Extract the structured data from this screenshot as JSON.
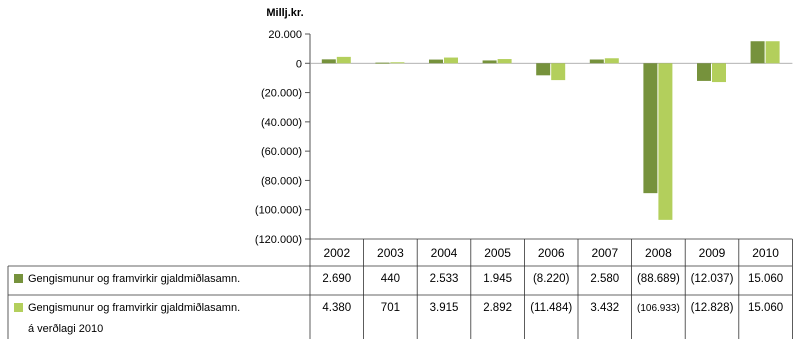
{
  "chart_data": {
    "type": "bar",
    "unit_label": "Millj.kr.",
    "categories": [
      "2002",
      "2003",
      "2004",
      "2005",
      "2006",
      "2007",
      "2008",
      "2009",
      "2010"
    ],
    "ylim": [
      -120000,
      20000
    ],
    "yticks": [
      20000,
      0,
      -20000,
      -40000,
      -60000,
      -80000,
      -100000,
      -120000
    ],
    "ytick_labels": [
      "20.000",
      "0",
      "(20.000)",
      "(40.000)",
      "(60.000)",
      "(80.000)",
      "(100.000)",
      "(120.000)"
    ],
    "legend_placement": "data-table-left",
    "series": [
      {
        "name": "Gengismunur og framvirkir gjaldmiðlasamn.",
        "name_line2": "",
        "color": "#76923c",
        "values": [
          2690,
          440,
          2533,
          1945,
          -8220,
          2580,
          -88689,
          -12037,
          15060
        ],
        "value_labels": [
          "2.690",
          "440",
          "2.533",
          "1.945",
          "(8.220)",
          "2.580",
          "(88.689)",
          "(12.037)",
          "15.060"
        ]
      },
      {
        "name": "Gengismunur og framvirkir gjaldmiðlasamn.",
        "name_line2": "á verðlagi 2010",
        "color": "#b3cf5c",
        "values": [
          4380,
          701,
          3915,
          2892,
          -11484,
          3432,
          -106933,
          -12828,
          15060
        ],
        "value_labels": [
          "4.380",
          "701",
          "3.915",
          "2.892",
          "(11.484)",
          "3.432",
          "(106.933)",
          "(12.828)",
          "15.060"
        ]
      }
    ]
  }
}
